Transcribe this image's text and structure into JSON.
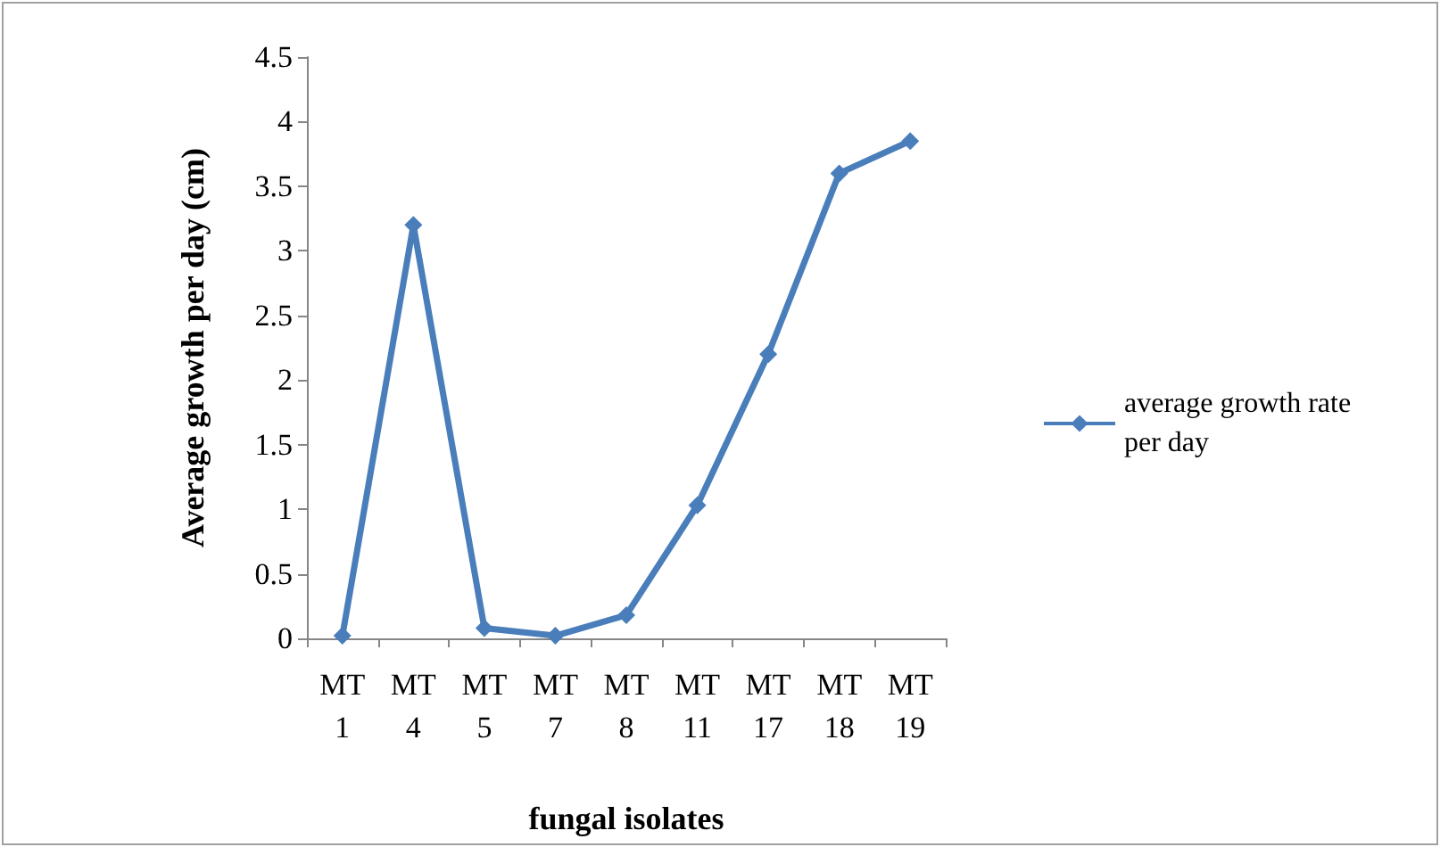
{
  "chart_data": {
    "type": "line",
    "xlabel": "fungal isolates",
    "ylabel": "Average growth per day (cm)",
    "categories": [
      "MT 1",
      "MT 4",
      "MT 5",
      "MT 7",
      "MT 8",
      "MT 11",
      "MT 17",
      "MT 18",
      "MT 19"
    ],
    "series": [
      {
        "name": "average growth rate per day",
        "color": "#4a7ebb",
        "values": [
          0.02,
          3.2,
          0.08,
          0.02,
          0.18,
          1.03,
          2.2,
          3.6,
          3.85
        ]
      }
    ],
    "ylim": [
      0,
      4.5
    ],
    "yticks": [
      0,
      0.5,
      1,
      1.5,
      2,
      2.5,
      3,
      3.5,
      4,
      4.5
    ],
    "grid": false,
    "legend": "right",
    "marker": "diamond"
  }
}
